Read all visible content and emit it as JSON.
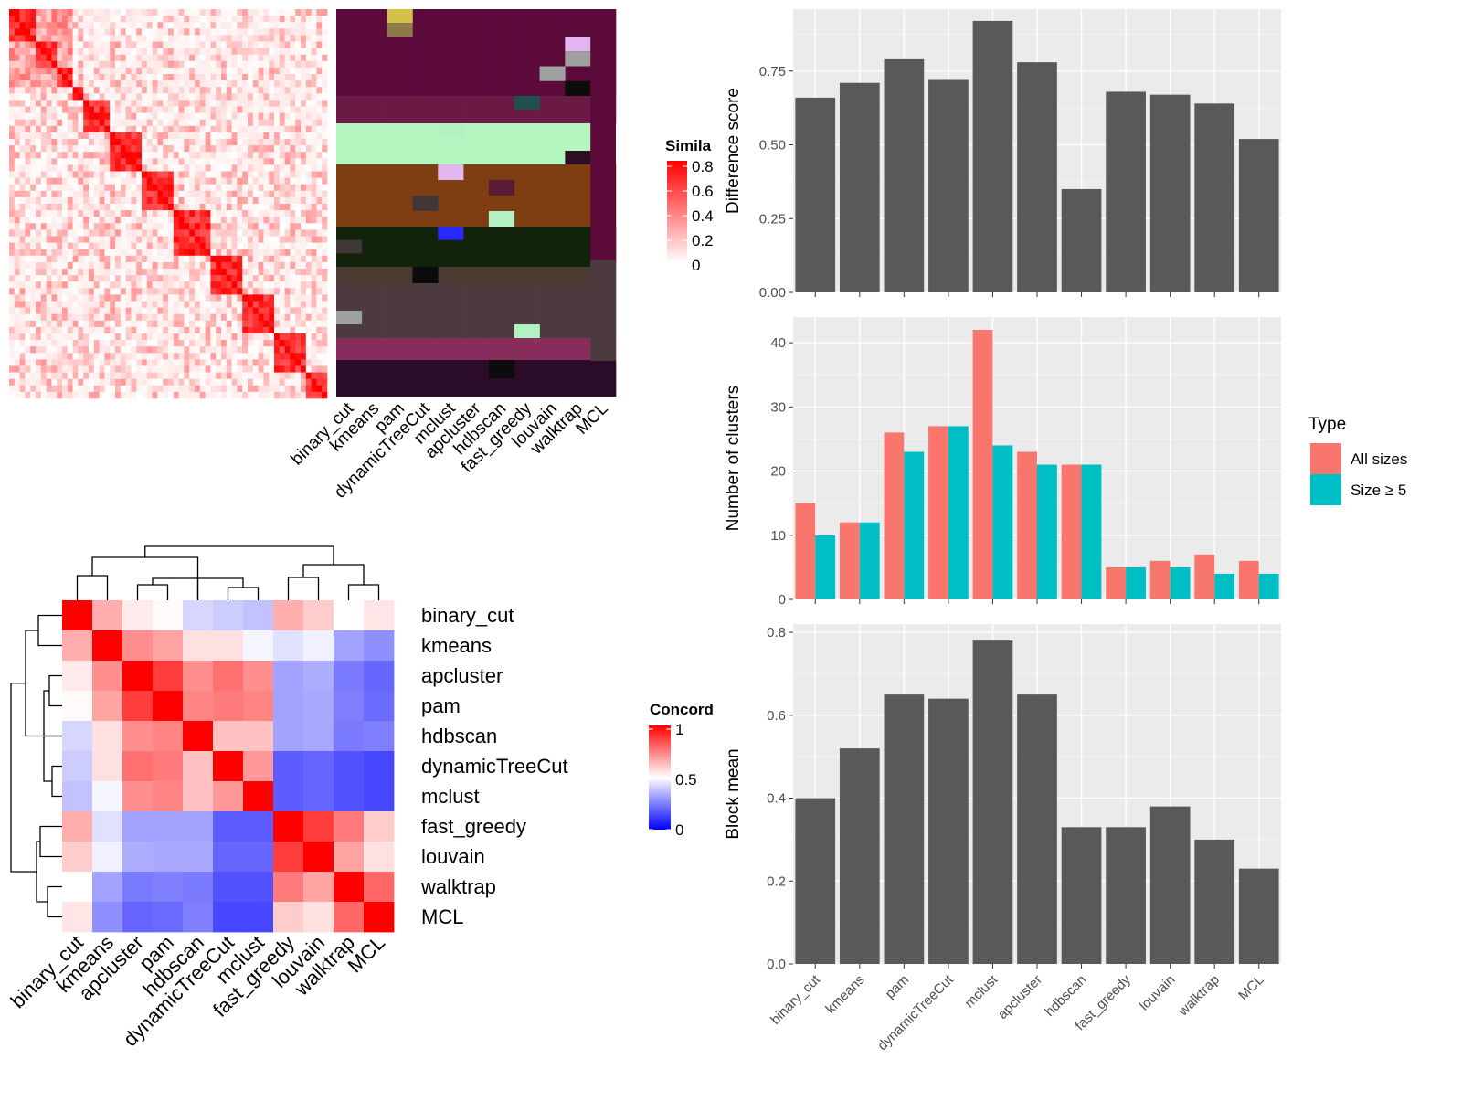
{
  "methods": [
    "binary_cut",
    "kmeans",
    "pam",
    "dynamicTreeCut",
    "mclust",
    "apcluster",
    "hdbscan",
    "fast_greedy",
    "louvain",
    "walktrap",
    "MCL"
  ],
  "similarity_heatmap": {
    "legend_title": "Simila",
    "legend_ticks": [
      "0.8",
      "0.6",
      "0.4",
      "0.2",
      "0"
    ],
    "colors": {
      "low": "#ffffff",
      "high": "#ff0000"
    }
  },
  "concordance_heatmap": {
    "legend_title": "Concord",
    "legend_ticks": [
      "1",
      "0.5",
      "0"
    ],
    "colors": {
      "low": "#0000ff",
      "mid": "#ffffff",
      "high": "#ff0000"
    },
    "order": [
      "binary_cut",
      "kmeans",
      "apcluster",
      "pam",
      "hdbscan",
      "dynamicTreeCut",
      "mclust",
      "fast_greedy",
      "louvain",
      "walktrap",
      "MCL"
    ],
    "matrix": [
      [
        1.0,
        0.66,
        0.54,
        0.51,
        0.42,
        0.4,
        0.38,
        0.66,
        0.6,
        0.5,
        0.55
      ],
      [
        0.66,
        1.0,
        0.72,
        0.68,
        0.56,
        0.56,
        0.48,
        0.44,
        0.47,
        0.32,
        0.28
      ],
      [
        0.54,
        0.72,
        1.0,
        0.88,
        0.72,
        0.78,
        0.72,
        0.32,
        0.34,
        0.24,
        0.2
      ],
      [
        0.51,
        0.68,
        0.88,
        1.0,
        0.74,
        0.76,
        0.74,
        0.32,
        0.33,
        0.25,
        0.21
      ],
      [
        0.42,
        0.56,
        0.72,
        0.74,
        1.0,
        0.62,
        0.62,
        0.32,
        0.33,
        0.24,
        0.25
      ],
      [
        0.4,
        0.56,
        0.78,
        0.76,
        0.62,
        1.0,
        0.7,
        0.18,
        0.2,
        0.16,
        0.14
      ],
      [
        0.38,
        0.48,
        0.72,
        0.74,
        0.62,
        0.7,
        1.0,
        0.18,
        0.2,
        0.16,
        0.14
      ],
      [
        0.66,
        0.44,
        0.32,
        0.32,
        0.32,
        0.18,
        0.18,
        1.0,
        0.88,
        0.76,
        0.6
      ],
      [
        0.6,
        0.47,
        0.34,
        0.33,
        0.33,
        0.2,
        0.2,
        0.88,
        1.0,
        0.68,
        0.56
      ],
      [
        0.5,
        0.32,
        0.24,
        0.25,
        0.24,
        0.16,
        0.16,
        0.76,
        0.68,
        1.0,
        0.8
      ],
      [
        0.55,
        0.28,
        0.2,
        0.21,
        0.25,
        0.14,
        0.14,
        0.6,
        0.56,
        0.8,
        1.0
      ]
    ]
  },
  "chart_data": [
    {
      "type": "bar",
      "categories": [
        "binary_cut",
        "kmeans",
        "pam",
        "dynamicTreeCut",
        "mclust",
        "apcluster",
        "hdbscan",
        "fast_greedy",
        "louvain",
        "walktrap",
        "MCL"
      ],
      "values": [
        0.66,
        0.71,
        0.79,
        0.72,
        0.92,
        0.78,
        0.35,
        0.68,
        0.67,
        0.64,
        0.52
      ],
      "ylabel": "Difference score",
      "ylim": [
        0,
        0.96
      ],
      "yticks": [
        "0.00",
        "0.25",
        "0.50",
        "0.75"
      ],
      "ytick_values": [
        0,
        0.25,
        0.5,
        0.75
      ],
      "color": "#595959"
    },
    {
      "type": "bar",
      "categories": [
        "binary_cut",
        "kmeans",
        "pam",
        "dynamicTreeCut",
        "mclust",
        "apcluster",
        "hdbscan",
        "fast_greedy",
        "louvain",
        "walktrap",
        "MCL"
      ],
      "series": [
        {
          "name": "All sizes",
          "values": [
            15,
            12,
            26,
            27,
            42,
            23,
            21,
            5,
            6,
            7,
            6
          ],
          "color": "#f8766d"
        },
        {
          "name": "Size ≥ 5",
          "values": [
            10,
            12,
            23,
            27,
            24,
            21,
            21,
            5,
            5,
            4,
            4
          ],
          "color": "#00bfc4"
        }
      ],
      "ylabel": "Number of clusters",
      "ylim": [
        0,
        44
      ],
      "yticks": [
        "0",
        "10",
        "20",
        "30",
        "40"
      ],
      "ytick_values": [
        0,
        10,
        20,
        30,
        40
      ],
      "legend_title": "Type",
      "legend_position": "right"
    },
    {
      "type": "bar",
      "categories": [
        "binary_cut",
        "kmeans",
        "pam",
        "dynamicTreeCut",
        "mclust",
        "apcluster",
        "hdbscan",
        "fast_greedy",
        "louvain",
        "walktrap",
        "MCL"
      ],
      "values": [
        0.4,
        0.52,
        0.65,
        0.64,
        0.78,
        0.65,
        0.33,
        0.33,
        0.38,
        0.3,
        0.23
      ],
      "ylabel": "Block mean",
      "ylim": [
        0,
        0.82
      ],
      "yticks": [
        "0.0",
        "0.2",
        "0.4",
        "0.6",
        "0.8"
      ],
      "ytick_values": [
        0,
        0.2,
        0.4,
        0.6,
        0.8
      ],
      "color": "#595959"
    }
  ]
}
